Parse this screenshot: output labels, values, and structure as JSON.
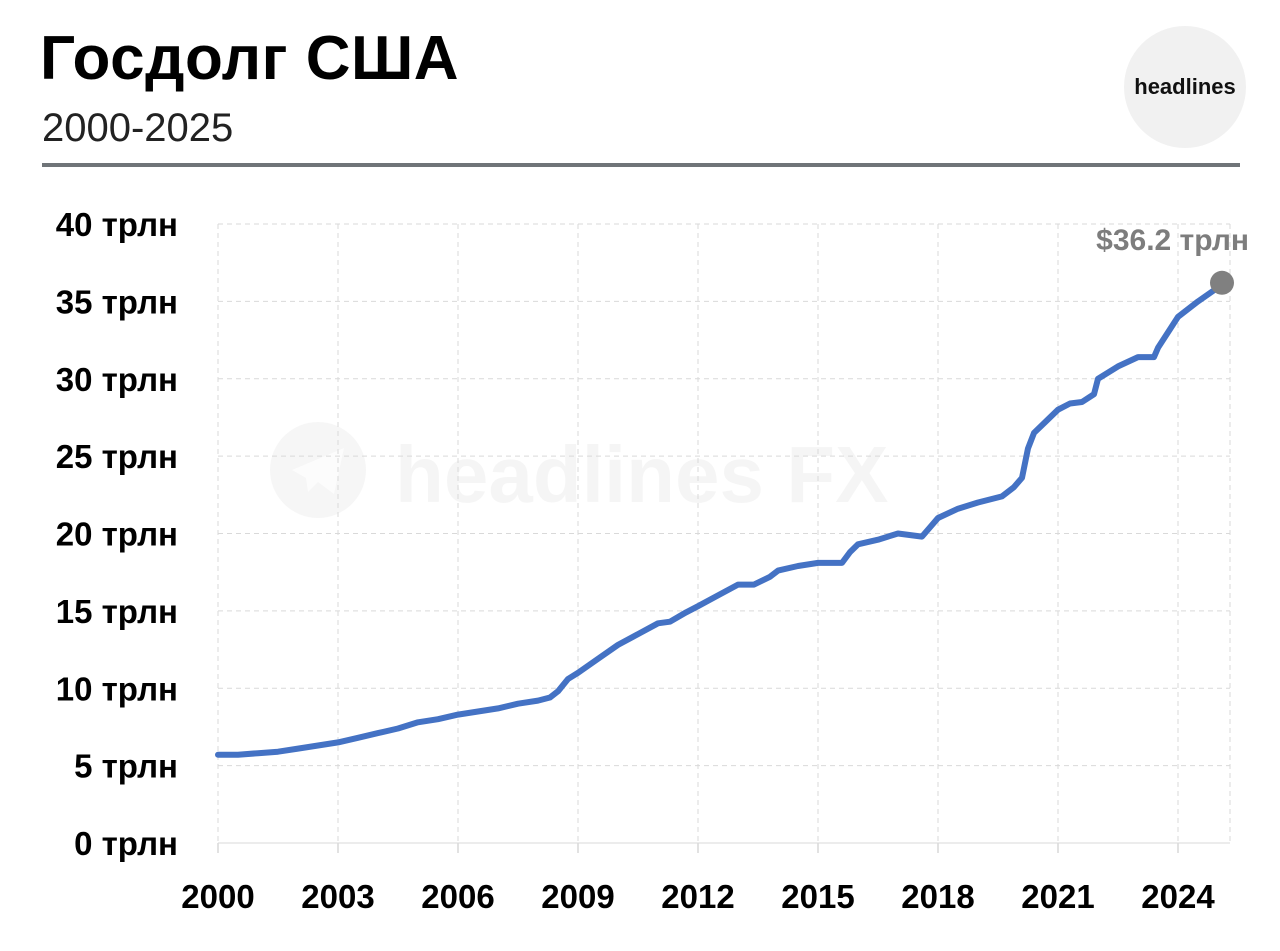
{
  "header": {
    "title": "Госдолг США",
    "subtitle": "2000-2025",
    "logo_text": "headlines"
  },
  "watermark": {
    "text": "headlines FX",
    "icon": "telegram-icon"
  },
  "colors": {
    "line": "#4472c4",
    "end_marker": "#808080",
    "grid": "#d9d9d9",
    "rule": "#6f7478"
  },
  "chart_data": {
    "type": "line",
    "title": "Госдолг США",
    "subtitle": "2000-2025",
    "xlabel": "",
    "ylabel": "",
    "xlim": [
      2000,
      2025.3
    ],
    "ylim": [
      0,
      40
    ],
    "x_ticks": [
      2000,
      2003,
      2006,
      2009,
      2012,
      2015,
      2018,
      2021,
      2024
    ],
    "x_tick_labels": [
      "2000",
      "2003",
      "2006",
      "2009",
      "2012",
      "2015",
      "2018",
      "2021",
      "2024"
    ],
    "y_ticks": [
      0,
      5,
      10,
      15,
      20,
      25,
      30,
      35,
      40
    ],
    "y_tick_labels": [
      "0 трлн",
      "5 трлн",
      "10 трлн",
      "15 трлн",
      "20 трлн",
      "25 трлн",
      "30 трлн",
      "35 трлн",
      "40 трлн"
    ],
    "grid": true,
    "end_label": "$36.2 трлн",
    "series": [
      {
        "x": [
          2000,
          2000.5,
          2001,
          2001.5,
          2002,
          2002.5,
          2003,
          2003.5,
          2004,
          2004.5,
          2005,
          2005.5,
          2006,
          2006.5,
          2007,
          2007.5,
          2008,
          2008.3,
          2008.5,
          2008.75,
          2009,
          2009.5,
          2010,
          2010.5,
          2011,
          2011.3,
          2011.7,
          2012,
          2012.5,
          2013,
          2013.4,
          2013.8,
          2014,
          2014.5,
          2015,
          2015.6,
          2015.8,
          2016,
          2016.5,
          2017,
          2017.6,
          2017.8,
          2018,
          2018.5,
          2019,
          2019.6,
          2019.9,
          2020.1,
          2020.25,
          2020.4,
          2020.6,
          2021,
          2021.3,
          2021.6,
          2021.9,
          2022,
          2022.5,
          2023,
          2023.4,
          2023.5,
          2023.8,
          2024,
          2024.5,
          2025,
          2025.1
        ],
        "y": [
          5.7,
          5.7,
          5.8,
          5.9,
          6.1,
          6.3,
          6.5,
          6.8,
          7.1,
          7.4,
          7.8,
          8.0,
          8.3,
          8.5,
          8.7,
          9.0,
          9.2,
          9.4,
          9.8,
          10.6,
          11.0,
          11.9,
          12.8,
          13.5,
          14.2,
          14.3,
          14.9,
          15.3,
          16.0,
          16.7,
          16.7,
          17.2,
          17.6,
          17.9,
          18.1,
          18.1,
          18.8,
          19.3,
          19.6,
          20.0,
          19.8,
          20.4,
          21.0,
          21.6,
          22.0,
          22.4,
          23.0,
          23.6,
          25.5,
          26.5,
          27.0,
          28.0,
          28.4,
          28.5,
          29.0,
          30.0,
          30.8,
          31.4,
          31.4,
          32.0,
          33.2,
          34.0,
          35.0,
          35.9,
          36.2
        ]
      }
    ]
  }
}
